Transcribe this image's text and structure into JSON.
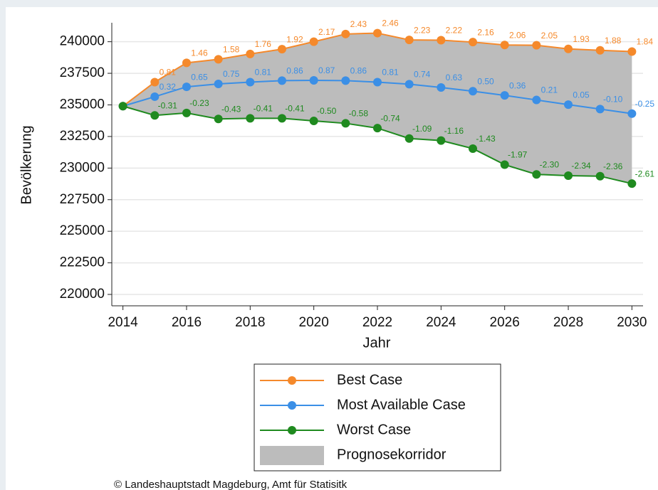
{
  "chart_data": {
    "type": "line",
    "x_label": "Jahr",
    "y_label": "Bevölkerung",
    "footer": "© Landeshauptstadt Magdeburg, Amt für Statisitk",
    "x": [
      2014,
      2015,
      2016,
      2017,
      2018,
      2019,
      2020,
      2021,
      2022,
      2023,
      2024,
      2025,
      2026,
      2027,
      2028,
      2029,
      2030
    ],
    "xlim": [
      2013.65,
      2030.35
    ],
    "xticks": [
      2014,
      2016,
      2018,
      2020,
      2022,
      2024,
      2026,
      2028,
      2030
    ],
    "ylim": [
      219100,
      241500
    ],
    "yticks": [
      220000,
      222500,
      225000,
      227500,
      230000,
      232500,
      235000,
      237500,
      240000
    ],
    "grid": true,
    "legend": "bottom",
    "series": [
      {
        "name": "Best Case",
        "color": "#f5892b",
        "values": [
          234900,
          236800,
          238330,
          238610,
          239030,
          239410,
          240000,
          240610,
          240680,
          240140,
          240120,
          239970,
          239740,
          239720,
          239430,
          239320,
          239220
        ],
        "labels": [
          null,
          "0.81",
          "1.46",
          "1.58",
          "1.76",
          "1.92",
          "2.17",
          "2.43",
          "2.46",
          "2.23",
          "2.22",
          "2.16",
          "2.06",
          "2.05",
          "1.93",
          "1.88",
          "1.84"
        ]
      },
      {
        "name": "Most Available Case",
        "color": "#3b8fe6",
        "values": [
          234900,
          235650,
          236430,
          236660,
          236800,
          236920,
          236940,
          236920,
          236800,
          236640,
          236380,
          236080,
          235750,
          235390,
          235020,
          234670,
          234310
        ],
        "labels": [
          null,
          "0.32",
          "0.65",
          "0.75",
          "0.81",
          "0.86",
          "0.87",
          "0.86",
          "0.81",
          "0.74",
          "0.63",
          "0.50",
          "0.36",
          "0.21",
          "0.05",
          "-0.10",
          "-0.25"
        ]
      },
      {
        "name": "Worst Case",
        "color": "#1f8a1f",
        "values": [
          234900,
          234170,
          234360,
          233890,
          233940,
          233940,
          233730,
          233540,
          233160,
          232340,
          232180,
          231540,
          230270,
          229500,
          229400,
          229360,
          228770
        ],
        "labels": [
          null,
          "-0.31",
          "-0.23",
          "-0.43",
          "-0.41",
          "-0.41",
          "-0.50",
          "-0.58",
          "-0.74",
          "-1.09",
          "-1.16",
          "-1.43",
          "-1.97",
          "-2.30",
          "-2.34",
          "-2.36",
          "-2.61"
        ]
      }
    ],
    "band": {
      "name": "Prognosekorridor",
      "color": "#bcbcbc"
    }
  }
}
